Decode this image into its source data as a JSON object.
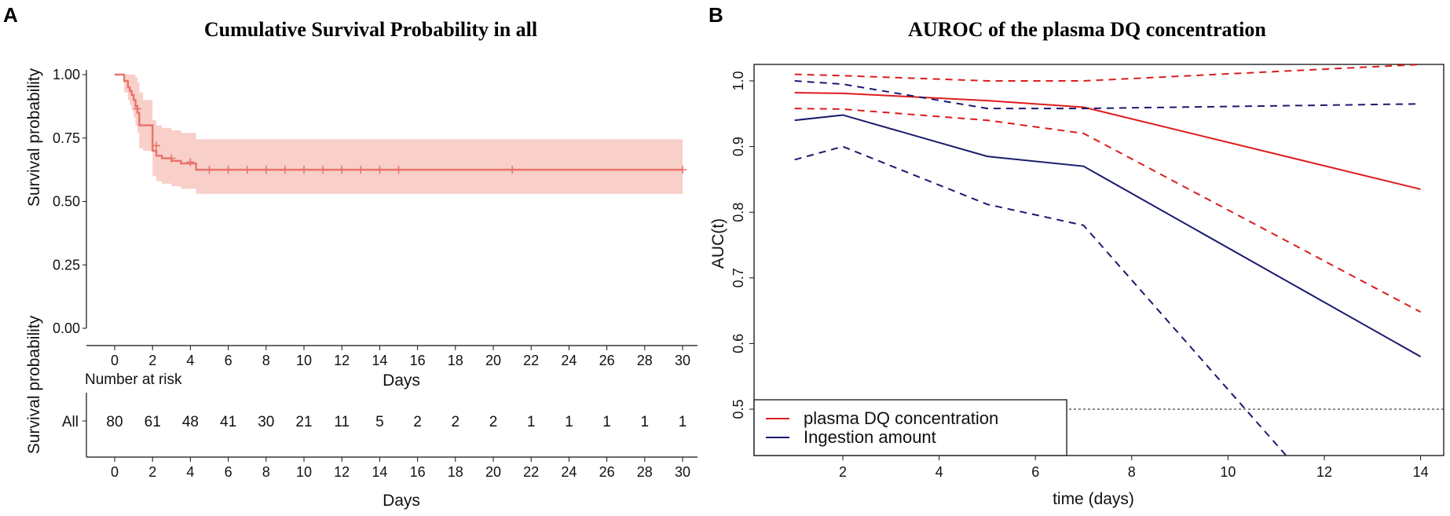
{
  "panel_a": {
    "letter": "A",
    "number_at_risk_label": "Number at risk"
  },
  "panel_b": {
    "letter": "B"
  },
  "chart_data": [
    {
      "type": "line",
      "subtype": "kaplan-meier",
      "title": "Cumulative Survival Probability in all",
      "xlabel": "Days",
      "ylabel": "Survival probability",
      "xlim": [
        -1.5,
        30.5
      ],
      "ylim": [
        0,
        1
      ],
      "xticks": [
        0,
        2,
        4,
        6,
        8,
        10,
        12,
        14,
        16,
        18,
        20,
        22,
        24,
        26,
        28,
        30
      ],
      "yticks": [
        "0.00",
        "0.25",
        "0.50",
        "0.75",
        "1.00"
      ],
      "color": "#e8736a",
      "ci_color": "#f8cfc9",
      "curve_x": [
        0,
        0.5,
        0.7,
        0.8,
        0.9,
        1.0,
        1.1,
        1.2,
        1.3,
        1.5,
        2.0,
        2.2,
        2.5,
        3.0,
        3.5,
        4.0,
        4.3,
        30
      ],
      "curve_y": [
        1.0,
        0.975,
        0.95,
        0.935,
        0.92,
        0.9,
        0.875,
        0.85,
        0.8,
        0.8,
        0.7,
        0.68,
        0.67,
        0.66,
        0.65,
        0.65,
        0.625,
        0.625
      ],
      "ci_upper": [
        1.0,
        1.0,
        1.0,
        1.0,
        1.0,
        1.0,
        0.99,
        0.97,
        0.93,
        0.9,
        0.82,
        0.8,
        0.79,
        0.78,
        0.77,
        0.77,
        0.745,
        0.745
      ],
      "ci_lower": [
        1.0,
        0.93,
        0.9,
        0.88,
        0.86,
        0.83,
        0.8,
        0.77,
        0.71,
        0.7,
        0.6,
        0.58,
        0.57,
        0.56,
        0.55,
        0.55,
        0.53,
        0.53
      ],
      "censor_x": [
        1.2,
        2.2,
        3.0,
        4.0,
        5,
        6,
        7,
        8,
        9,
        10,
        11,
        12,
        13,
        14,
        15,
        21,
        30
      ],
      "censor_y": [
        0.865,
        0.72,
        0.67,
        0.655,
        0.625,
        0.625,
        0.625,
        0.625,
        0.625,
        0.625,
        0.625,
        0.625,
        0.625,
        0.625,
        0.625,
        0.625,
        0.625
      ],
      "risk_table": {
        "title": "Number at risk",
        "ylabel": "Survival probability",
        "xlabel": "Days",
        "strata_label": "All",
        "x": [
          0,
          2,
          4,
          6,
          8,
          10,
          12,
          14,
          16,
          18,
          20,
          22,
          24,
          26,
          28,
          30
        ],
        "counts": [
          80,
          61,
          48,
          41,
          30,
          21,
          11,
          5,
          2,
          2,
          2,
          1,
          1,
          1,
          1,
          1
        ]
      }
    },
    {
      "type": "line",
      "title": "AUROC of the plasma DQ concentration",
      "xlabel": "time (days)",
      "ylabel": "AUC(t)",
      "xlim": [
        0.7,
        14.5
      ],
      "ylim": [
        0.43,
        1.03
      ],
      "xticks": [
        2,
        4,
        6,
        8,
        10,
        12,
        14
      ],
      "yticks": [
        "0.5",
        "0.6",
        "0.7",
        "0.8",
        "0.9",
        "1.0"
      ],
      "reference_line": 0.5,
      "series": [
        {
          "name": "plasma DQ concentration",
          "color": "#dd1c1c",
          "dash": false,
          "x": [
            1,
            2,
            5,
            7,
            14
          ],
          "y": [
            0.982,
            0.981,
            0.97,
            0.96,
            0.835
          ]
        },
        {
          "name": "plasma DQ upper CI",
          "color": "#dd1c1c",
          "dash": true,
          "legend": false,
          "x": [
            1,
            2,
            5,
            7,
            14
          ],
          "y": [
            1.01,
            1.008,
            1.0,
            1.0,
            1.025
          ]
        },
        {
          "name": "plasma DQ lower CI",
          "color": "#dd1c1c",
          "dash": true,
          "legend": false,
          "x": [
            1,
            2,
            5,
            7,
            14
          ],
          "y": [
            0.958,
            0.957,
            0.94,
            0.92,
            0.648
          ]
        },
        {
          "name": "Ingestion amount",
          "color": "#1a1a6e",
          "dash": false,
          "x": [
            1,
            2,
            5,
            7,
            14
          ],
          "y": [
            0.94,
            0.948,
            0.885,
            0.87,
            0.58
          ]
        },
        {
          "name": "Ingestion upper CI",
          "color": "#1a1a6e",
          "dash": true,
          "legend": false,
          "x": [
            1,
            2,
            5,
            7,
            14
          ],
          "y": [
            1.0,
            0.995,
            0.958,
            0.958,
            0.965
          ]
        },
        {
          "name": "Ingestion lower CI",
          "color": "#1a1a6e",
          "dash": true,
          "legend": false,
          "x": [
            1,
            2,
            5,
            7,
            11.2
          ],
          "y": [
            0.88,
            0.9,
            0.812,
            0.78,
            0.43
          ]
        }
      ],
      "legend": [
        "plasma DQ concentration",
        "Ingestion amount"
      ]
    }
  ]
}
